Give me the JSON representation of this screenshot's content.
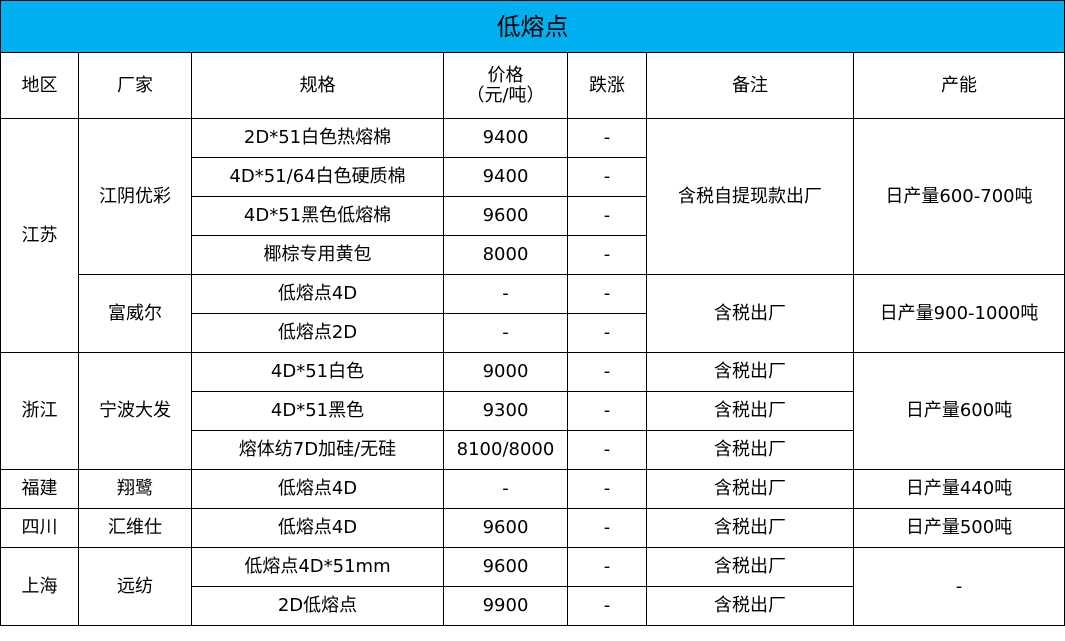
{
  "title": "低熔点",
  "colors": {
    "title_bg": "#00b0f0"
  },
  "headers": {
    "region": "地区",
    "maker": "厂家",
    "spec": "规格",
    "price_l1": "价格",
    "price_l2": "（元/吨）",
    "change": "跌涨",
    "note": "备注",
    "capacity": "产能"
  },
  "rows": [
    {
      "region": "江苏",
      "maker": "江阴优彩",
      "spec": "2D*51白色热熔棉",
      "price": "9400",
      "change": "-",
      "note": "含税自提现款出厂",
      "capacity": "日产量600-700吨"
    },
    {
      "spec": "4D*51/64白色硬质棉",
      "price": "9400",
      "change": "-"
    },
    {
      "spec": "4D*51黑色低熔棉",
      "price": "9600",
      "change": "-"
    },
    {
      "spec": "椰棕专用黄包",
      "price": "8000",
      "change": "-"
    },
    {
      "maker": "富威尔",
      "spec": "低熔点4D",
      "price": "-",
      "change": "-",
      "note": "含税出厂",
      "capacity": "日产量900-1000吨"
    },
    {
      "spec": "低熔点2D",
      "price": "-",
      "change": "-"
    },
    {
      "region": "浙江",
      "maker": "宁波大发",
      "spec": "4D*51白色",
      "price": "9000",
      "change": "-",
      "note": "含税出厂",
      "capacity": "日产量600吨"
    },
    {
      "spec": "4D*51黑色",
      "price": "9300",
      "change": "-",
      "note": "含税出厂"
    },
    {
      "spec": "熔体纺7D加硅/无硅",
      "price": "8100/8000",
      "change": "-",
      "note": "含税出厂"
    },
    {
      "region": "福建",
      "maker": "翔鹭",
      "spec": "低熔点4D",
      "price": "-",
      "change": "-",
      "note": "含税出厂",
      "capacity": "日产量440吨"
    },
    {
      "region": "四川",
      "maker": "汇维仕",
      "spec": "低熔点4D",
      "price": "9600",
      "change": "-",
      "note": "含税出厂",
      "capacity": "日产量500吨"
    },
    {
      "region": "上海",
      "maker": "远纺",
      "spec": "低熔点4D*51mm",
      "price": "9600",
      "change": "-",
      "note": "含税出厂",
      "capacity": "-"
    },
    {
      "spec": "2D低熔点",
      "price": "9900",
      "change": "-",
      "note": "含税出厂"
    }
  ]
}
